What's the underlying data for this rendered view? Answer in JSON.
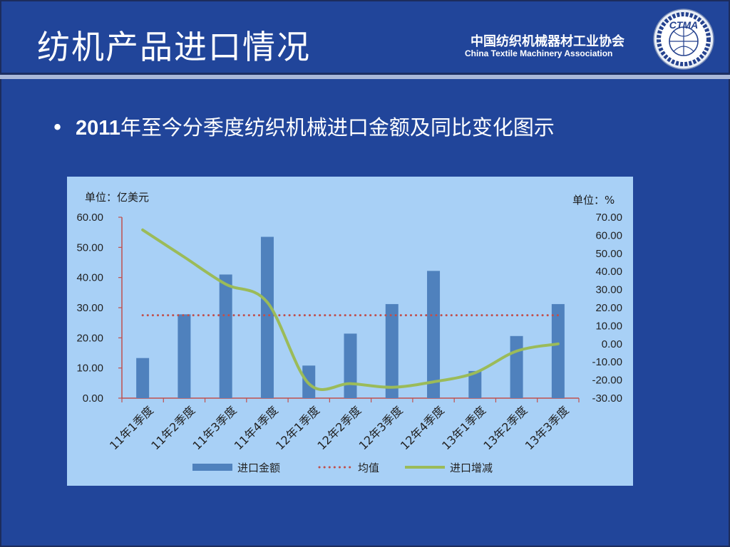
{
  "slide": {
    "title": "纺机产品进口情况",
    "association_cn": "中国纺织机械器材工业协会",
    "association_en": "China Textile Machinery Association",
    "logo_text": "CTMA",
    "bullet_year": "2011",
    "bullet_rest": "年至今分季度纺织机械进口金额及同比变化图示",
    "bullet_glyph": "•"
  },
  "colors": {
    "background": "#21459a",
    "chart_bg": "#a8d0f6",
    "bar": "#4f81bd",
    "mean_line": "#c0504d",
    "growth_line": "#9bbb59",
    "axis": "#c0504d"
  },
  "chart_data": {
    "type": "bar",
    "unit_left": "单位：亿美元",
    "unit_right": "单位：%",
    "categories": [
      "11年1季度",
      "11年2季度",
      "11年3季度",
      "11年4季度",
      "12年1季度",
      "12年2季度",
      "12年3季度",
      "12年4季度",
      "13年1季度",
      "13年2季度",
      "13年3季度"
    ],
    "y_left": {
      "min": 0,
      "max": 60,
      "step": 10,
      "ticks": [
        "0.00",
        "10.00",
        "20.00",
        "30.00",
        "40.00",
        "50.00",
        "60.00"
      ]
    },
    "y_right": {
      "min": -30,
      "max": 70,
      "step": 10,
      "ticks": [
        "-30.00",
        "-20.00",
        "-10.00",
        "0.00",
        "10.00",
        "20.00",
        "30.00",
        "40.00",
        "50.00",
        "60.00",
        "70.00"
      ]
    },
    "series": [
      {
        "name": "进口金额",
        "type": "bar",
        "axis": "left",
        "values": [
          13.3,
          27.8,
          41.0,
          53.5,
          10.8,
          21.4,
          31.2,
          42.2,
          9.0,
          20.6,
          31.2
        ]
      },
      {
        "name": "均值",
        "type": "line-dotted",
        "axis": "left",
        "values": [
          27.5,
          27.5,
          27.5,
          27.5,
          27.5,
          27.5,
          27.5,
          27.5,
          27.5,
          27.5,
          27.5
        ]
      },
      {
        "name": "进口增减",
        "type": "line",
        "axis": "right",
        "values": [
          63.0,
          48.0,
          33.0,
          23.0,
          -22.0,
          -22.0,
          -24.0,
          -21.0,
          -16.0,
          -4.0,
          0.0
        ]
      }
    ],
    "legend": "bottom",
    "grid": false
  }
}
